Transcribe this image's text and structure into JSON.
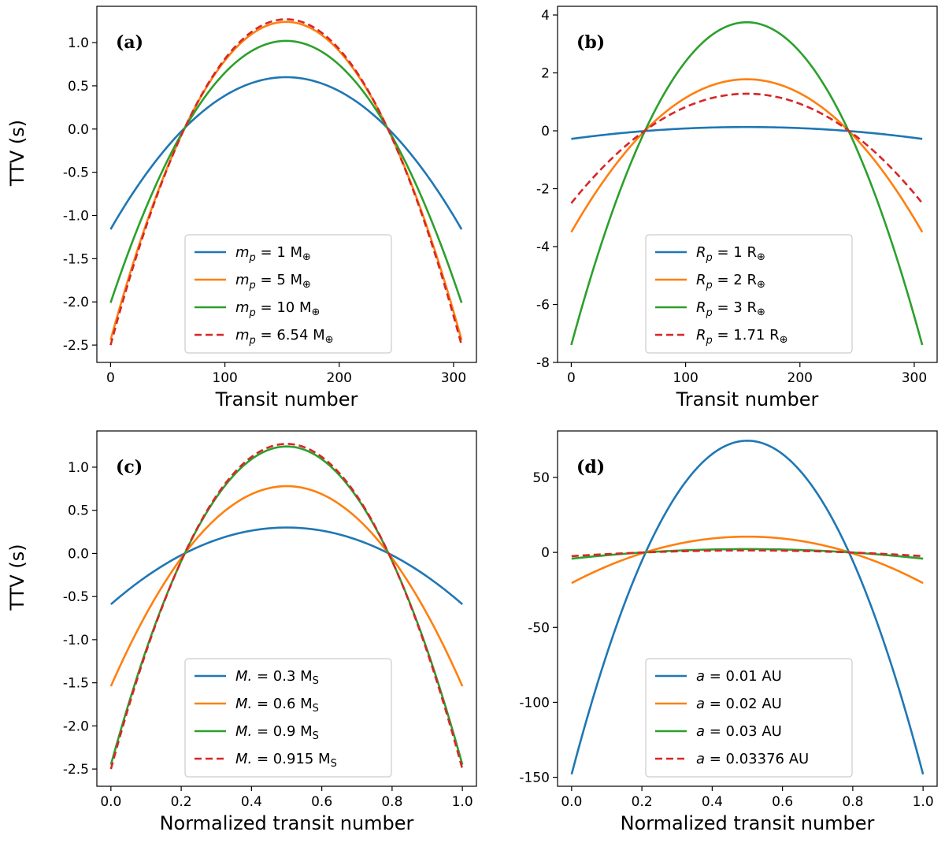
{
  "chart_data": [
    {
      "type": "line",
      "panel": "(a)",
      "xlabel": "Transit number",
      "ylabel": "TTV (s)",
      "xlim": [
        -12,
        320
      ],
      "ylim": [
        -2.7,
        1.42
      ],
      "xticks": [
        0,
        100,
        200,
        300
      ],
      "xtick_labels": [
        "0",
        "100",
        "200",
        "300"
      ],
      "yticks": [
        -2.5,
        -2.0,
        -1.5,
        -1.0,
        -0.5,
        0.0,
        0.5,
        1.0
      ],
      "ytick_labels": [
        "-2.5",
        "-2.0",
        "-1.5",
        "-1.0",
        "-0.5",
        "0.0",
        "0.5",
        "1.0"
      ],
      "legend_position": "lower-center",
      "series": [
        {
          "name": "m_p = 1 M⊕",
          "symbol": "m",
          "sub": "p",
          "value": " = 1 M",
          "unit": "⊕",
          "color": "#1f77b4",
          "dash": "solid",
          "x_start": 0,
          "x_end": 307,
          "peak": 0.6,
          "edge": -1.16
        },
        {
          "name": "m_p = 5 M⊕",
          "symbol": "m",
          "sub": "p",
          "value": " = 5 M",
          "unit": "⊕",
          "color": "#ff7f0e",
          "dash": "solid",
          "x_start": 0,
          "x_end": 307,
          "peak": 1.24,
          "edge": -2.44
        },
        {
          "name": "m_p = 10 M⊕",
          "symbol": "m",
          "sub": "p",
          "value": " = 10 M",
          "unit": "⊕",
          "color": "#2ca02c",
          "dash": "solid",
          "x_start": 0,
          "x_end": 307,
          "peak": 1.02,
          "edge": -2.01
        },
        {
          "name": "m_p = 6.54 M⊕",
          "symbol": "m",
          "sub": "p",
          "value": " = 6.54 M",
          "unit": "⊕",
          "color": "#d62728",
          "dash": "dashed",
          "x_start": 0,
          "x_end": 307,
          "peak": 1.27,
          "edge": -2.5
        }
      ]
    },
    {
      "type": "line",
      "panel": "(b)",
      "xlabel": "Transit number",
      "ylabel": "",
      "xlim": [
        -12,
        320
      ],
      "ylim": [
        -8,
        4.3
      ],
      "xticks": [
        0,
        100,
        200,
        300
      ],
      "xtick_labels": [
        "0",
        "100",
        "200",
        "300"
      ],
      "yticks": [
        -8,
        -6,
        -4,
        -2,
        0,
        2,
        4
      ],
      "ytick_labels": [
        "-8",
        "-6",
        "-4",
        "-2",
        "0",
        "2",
        "4"
      ],
      "legend_position": "lower-center",
      "series": [
        {
          "name": "R_p = 1 R⊕",
          "symbol": "R",
          "sub": "p",
          "value": " = 1 R",
          "unit": "⊕",
          "color": "#1f77b4",
          "dash": "solid",
          "x_start": 0,
          "x_end": 307,
          "peak": 0.13,
          "edge": -0.28
        },
        {
          "name": "R_p = 2 R⊕",
          "symbol": "R",
          "sub": "p",
          "value": " = 2 R",
          "unit": "⊕",
          "color": "#ff7f0e",
          "dash": "solid",
          "x_start": 0,
          "x_end": 307,
          "peak": 1.78,
          "edge": -3.5
        },
        {
          "name": "R_p = 3 R⊕",
          "symbol": "R",
          "sub": "p",
          "value": " = 3 R",
          "unit": "⊕",
          "color": "#2ca02c",
          "dash": "solid",
          "x_start": 0,
          "x_end": 307,
          "peak": 3.75,
          "edge": -7.4
        },
        {
          "name": "R_p = 1.71 R⊕",
          "symbol": "R",
          "sub": "p",
          "value": " = 1.71 R",
          "unit": "⊕",
          "color": "#d62728",
          "dash": "dashed",
          "x_start": 0,
          "x_end": 307,
          "peak": 1.28,
          "edge": -2.5
        }
      ]
    },
    {
      "type": "line",
      "panel": "(c)",
      "xlabel": "Normalized transit number",
      "ylabel": "TTV (s)",
      "xlim": [
        -0.04,
        1.04
      ],
      "ylim": [
        -2.7,
        1.42
      ],
      "xticks": [
        0.0,
        0.2,
        0.4,
        0.6,
        0.8,
        1.0
      ],
      "xtick_labels": [
        "0.0",
        "0.2",
        "0.4",
        "0.6",
        "0.8",
        "1.0"
      ],
      "yticks": [
        -2.5,
        -2.0,
        -1.5,
        -1.0,
        -0.5,
        0.0,
        0.5,
        1.0
      ],
      "ytick_labels": [
        "-2.5",
        "-2.0",
        "-1.5",
        "-1.0",
        "-0.5",
        "0.0",
        "0.5",
        "1.0"
      ],
      "legend_position": "lower-center",
      "series": [
        {
          "name": "M* = 0.3 MS",
          "symbol": "M.",
          "sub": "",
          "value": " = 0.3 M",
          "unit": "S",
          "color": "#1f77b4",
          "dash": "solid",
          "x_start": 0,
          "x_end": 1,
          "peak": 0.3,
          "edge": -0.59
        },
        {
          "name": "M* = 0.6 MS",
          "symbol": "M.",
          "sub": "",
          "value": " = 0.6 M",
          "unit": "S",
          "color": "#ff7f0e",
          "dash": "solid",
          "x_start": 0,
          "x_end": 1,
          "peak": 0.78,
          "edge": -1.54
        },
        {
          "name": "M* = 0.9 MS",
          "symbol": "M.",
          "sub": "",
          "value": " = 0.9 M",
          "unit": "S",
          "color": "#2ca02c",
          "dash": "solid",
          "x_start": 0,
          "x_end": 1,
          "peak": 1.24,
          "edge": -2.45
        },
        {
          "name": "M* = 0.915 MS",
          "symbol": "M.",
          "sub": "",
          "value": " = 0.915 M",
          "unit": "S",
          "color": "#d62728",
          "dash": "dashed",
          "x_start": 0,
          "x_end": 1,
          "peak": 1.27,
          "edge": -2.5
        }
      ]
    },
    {
      "type": "line",
      "panel": "(d)",
      "xlabel": "Normalized transit number",
      "ylabel": "",
      "xlim": [
        -0.04,
        1.04
      ],
      "ylim": [
        -156,
        81
      ],
      "xticks": [
        0.0,
        0.2,
        0.4,
        0.6,
        0.8,
        1.0
      ],
      "xtick_labels": [
        "0.0",
        "0.2",
        "0.4",
        "0.6",
        "0.8",
        "1.0"
      ],
      "yticks": [
        -150,
        -100,
        -50,
        0,
        50
      ],
      "ytick_labels": [
        "-150",
        "-100",
        "-50",
        "0",
        "50"
      ],
      "legend_position": "lower-center",
      "series": [
        {
          "name": "a = 0.01 AU",
          "symbol": "a",
          "sub": "",
          "value": " = 0.01 AU",
          "unit": "",
          "color": "#1f77b4",
          "dash": "solid",
          "x_start": 0,
          "x_end": 1,
          "peak": 74.5,
          "edge": -148
        },
        {
          "name": "a = 0.02 AU",
          "symbol": "a",
          "sub": "",
          "value": " = 0.02 AU",
          "unit": "",
          "color": "#ff7f0e",
          "dash": "solid",
          "x_start": 0,
          "x_end": 1,
          "peak": 10.5,
          "edge": -20.5
        },
        {
          "name": "a = 0.03 AU",
          "symbol": "a",
          "sub": "",
          "value": " = 0.03 AU",
          "unit": "",
          "color": "#2ca02c",
          "dash": "solid",
          "x_start": 0,
          "x_end": 1,
          "peak": 2.2,
          "edge": -4.2
        },
        {
          "name": "a = 0.03376 AU",
          "symbol": "a",
          "sub": "",
          "value": " = 0.03376 AU",
          "unit": "",
          "color": "#d62728",
          "dash": "dashed",
          "x_start": 0,
          "x_end": 1,
          "peak": 1.28,
          "edge": -2.5
        }
      ]
    }
  ]
}
